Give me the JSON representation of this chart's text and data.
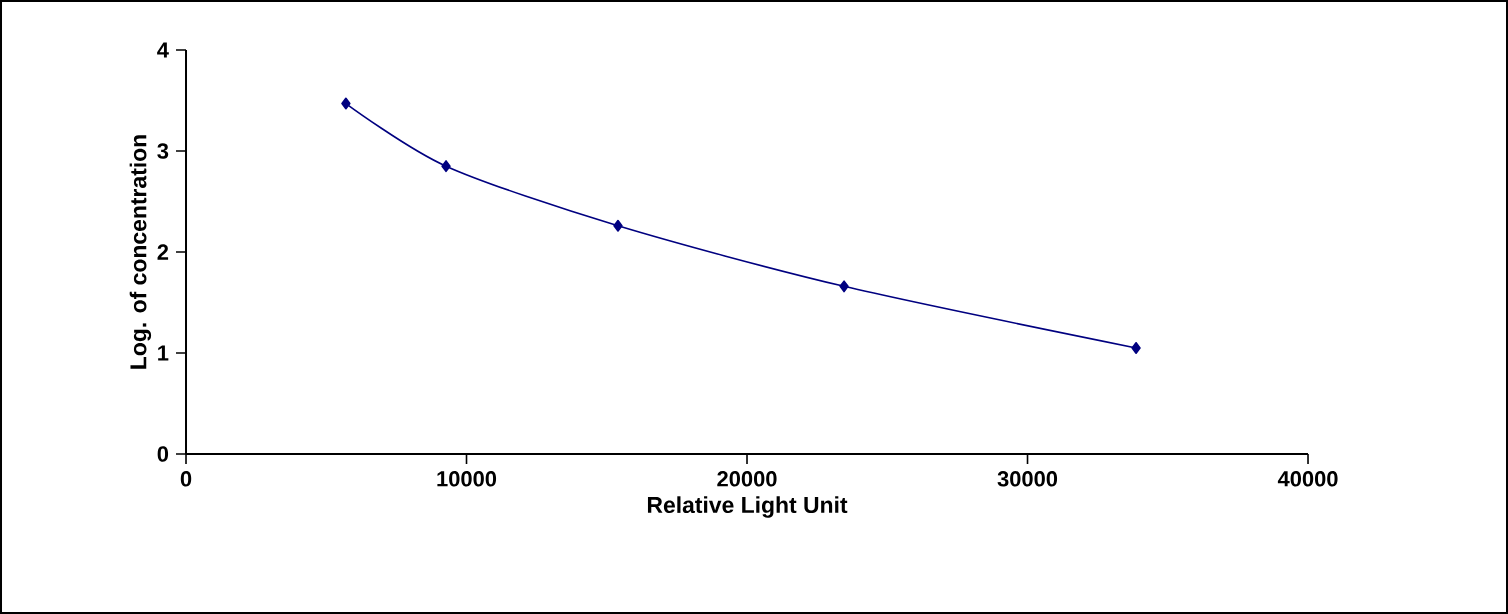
{
  "chart_data": {
    "type": "line",
    "xlabel": "Relative Light Unit",
    "ylabel": "Log. of concentration",
    "x": [
      5700,
      9270,
      15400,
      23460,
      33870
    ],
    "series": [
      {
        "color": "#000080",
        "values": [
          3.47,
          2.85,
          2.26,
          1.66,
          1.05
        ]
      }
    ],
    "xlim": [
      0,
      40000
    ],
    "xticks": [
      0,
      10000,
      20000,
      30000,
      40000
    ],
    "ylim": [
      0,
      4
    ],
    "yticks": [
      0,
      1,
      2,
      3,
      4
    ],
    "marker": "diamond",
    "line_style": "solid",
    "grid": false,
    "legend": false
  }
}
